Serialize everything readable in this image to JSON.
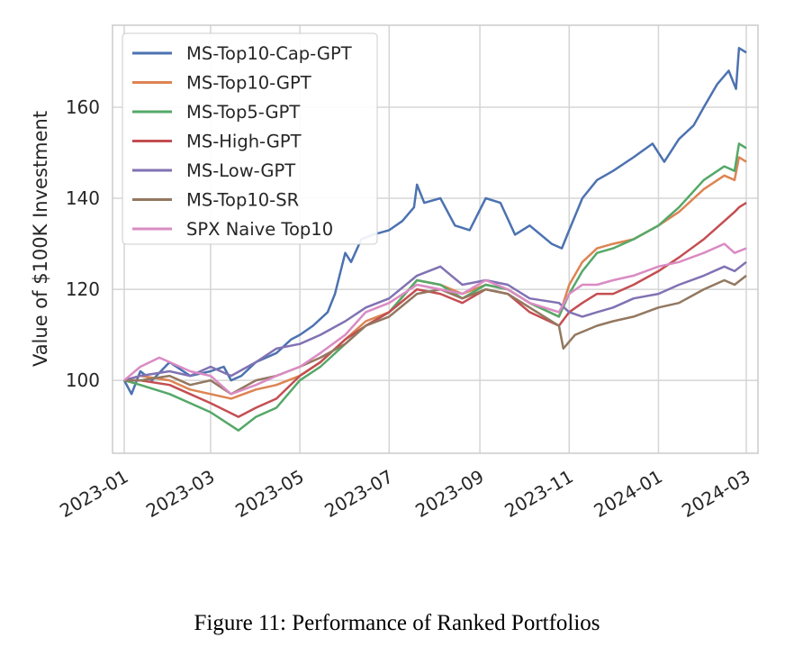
{
  "caption": "Figure 11: Performance of Ranked Portfolios",
  "chart_data": {
    "type": "line",
    "title": "",
    "xlabel": "",
    "ylabel": "Value of $100K Investment",
    "xlim": [
      "2022-12-24",
      "2024-03-09"
    ],
    "ylim": [
      84,
      178
    ],
    "grid": true,
    "legend_position": "top-left",
    "x_ticks": [
      "2023-01",
      "2023-03",
      "2023-05",
      "2023-07",
      "2023-09",
      "2023-11",
      "2024-01",
      "2024-03"
    ],
    "y_ticks": [
      100,
      120,
      140,
      160
    ],
    "series": [
      {
        "name": "MS-Top10-Cap-GPT",
        "color": "#4c72b0",
        "points": [
          [
            "2023-01-01",
            100
          ],
          [
            "2023-01-06",
            97
          ],
          [
            "2023-01-12",
            102
          ],
          [
            "2023-01-20",
            100
          ],
          [
            "2023-02-01",
            104
          ],
          [
            "2023-02-15",
            101
          ],
          [
            "2023-03-01",
            102
          ],
          [
            "2023-03-10",
            103
          ],
          [
            "2023-03-15",
            100
          ],
          [
            "2023-03-22",
            101
          ],
          [
            "2023-04-01",
            104
          ],
          [
            "2023-04-15",
            106
          ],
          [
            "2023-04-25",
            109
          ],
          [
            "2023-05-01",
            110
          ],
          [
            "2023-05-10",
            112
          ],
          [
            "2023-05-20",
            115
          ],
          [
            "2023-05-25",
            119
          ],
          [
            "2023-06-01",
            128
          ],
          [
            "2023-06-05",
            126
          ],
          [
            "2023-06-12",
            131
          ],
          [
            "2023-06-20",
            132
          ],
          [
            "2023-07-01",
            133
          ],
          [
            "2023-07-10",
            135
          ],
          [
            "2023-07-18",
            138
          ],
          [
            "2023-07-20",
            143
          ],
          [
            "2023-07-25",
            139
          ],
          [
            "2023-08-05",
            140
          ],
          [
            "2023-08-15",
            134
          ],
          [
            "2023-08-25",
            133
          ],
          [
            "2023-09-05",
            140
          ],
          [
            "2023-09-15",
            139
          ],
          [
            "2023-09-25",
            132
          ],
          [
            "2023-10-05",
            134
          ],
          [
            "2023-10-20",
            130
          ],
          [
            "2023-10-27",
            129
          ],
          [
            "2023-11-01",
            133
          ],
          [
            "2023-11-10",
            140
          ],
          [
            "2023-11-20",
            144
          ],
          [
            "2023-12-01",
            146
          ],
          [
            "2023-12-15",
            149
          ],
          [
            "2023-12-28",
            152
          ],
          [
            "2024-01-05",
            148
          ],
          [
            "2024-01-15",
            153
          ],
          [
            "2024-01-25",
            156
          ],
          [
            "2024-02-01",
            160
          ],
          [
            "2024-02-10",
            165
          ],
          [
            "2024-02-18",
            168
          ],
          [
            "2024-02-23",
            164
          ],
          [
            "2024-02-25",
            173
          ],
          [
            "2024-03-01",
            172
          ]
        ]
      },
      {
        "name": "MS-Top10-GPT",
        "color": "#dd8452",
        "points": [
          [
            "2023-01-01",
            100
          ],
          [
            "2023-01-12",
            101
          ],
          [
            "2023-02-01",
            100
          ],
          [
            "2023-02-15",
            98
          ],
          [
            "2023-03-01",
            97
          ],
          [
            "2023-03-15",
            96
          ],
          [
            "2023-04-01",
            98
          ],
          [
            "2023-04-15",
            99
          ],
          [
            "2023-05-01",
            101
          ],
          [
            "2023-05-15",
            104
          ],
          [
            "2023-06-01",
            109
          ],
          [
            "2023-06-15",
            113
          ],
          [
            "2023-07-01",
            115
          ],
          [
            "2023-07-20",
            122
          ],
          [
            "2023-08-05",
            121
          ],
          [
            "2023-08-20",
            119
          ],
          [
            "2023-09-05",
            121
          ],
          [
            "2023-09-20",
            120
          ],
          [
            "2023-10-05",
            117
          ],
          [
            "2023-10-25",
            114
          ],
          [
            "2023-11-01",
            121
          ],
          [
            "2023-11-10",
            126
          ],
          [
            "2023-11-20",
            129
          ],
          [
            "2023-12-01",
            130
          ],
          [
            "2023-12-15",
            131
          ],
          [
            "2024-01-01",
            134
          ],
          [
            "2024-01-15",
            137
          ],
          [
            "2024-02-01",
            142
          ],
          [
            "2024-02-15",
            145
          ],
          [
            "2024-02-22",
            144
          ],
          [
            "2024-02-25",
            149
          ],
          [
            "2024-03-01",
            148
          ]
        ]
      },
      {
        "name": "MS-Top5-GPT",
        "color": "#55a868",
        "points": [
          [
            "2023-01-01",
            100
          ],
          [
            "2023-01-12",
            99
          ],
          [
            "2023-02-01",
            97
          ],
          [
            "2023-02-15",
            95
          ],
          [
            "2023-03-01",
            93
          ],
          [
            "2023-03-20",
            89
          ],
          [
            "2023-04-01",
            92
          ],
          [
            "2023-04-15",
            94
          ],
          [
            "2023-05-01",
            100
          ],
          [
            "2023-05-15",
            103
          ],
          [
            "2023-06-01",
            108
          ],
          [
            "2023-06-15",
            112
          ],
          [
            "2023-07-01",
            115
          ],
          [
            "2023-07-20",
            122
          ],
          [
            "2023-08-05",
            121
          ],
          [
            "2023-08-20",
            118
          ],
          [
            "2023-09-05",
            121
          ],
          [
            "2023-09-20",
            120
          ],
          [
            "2023-10-05",
            117
          ],
          [
            "2023-10-25",
            114
          ],
          [
            "2023-11-01",
            119
          ],
          [
            "2023-11-10",
            124
          ],
          [
            "2023-11-20",
            128
          ],
          [
            "2023-12-01",
            129
          ],
          [
            "2023-12-15",
            131
          ],
          [
            "2024-01-01",
            134
          ],
          [
            "2024-01-15",
            138
          ],
          [
            "2024-02-01",
            144
          ],
          [
            "2024-02-15",
            147
          ],
          [
            "2024-02-22",
            146
          ],
          [
            "2024-02-25",
            152
          ],
          [
            "2024-03-01",
            151
          ]
        ]
      },
      {
        "name": "MS-High-GPT",
        "color": "#c44e52",
        "points": [
          [
            "2023-01-01",
            100
          ],
          [
            "2023-01-12",
            100
          ],
          [
            "2023-02-01",
            99
          ],
          [
            "2023-02-15",
            97
          ],
          [
            "2023-03-01",
            95
          ],
          [
            "2023-03-20",
            92
          ],
          [
            "2023-04-01",
            94
          ],
          [
            "2023-04-15",
            96
          ],
          [
            "2023-05-01",
            101
          ],
          [
            "2023-05-15",
            104
          ],
          [
            "2023-06-01",
            109
          ],
          [
            "2023-06-15",
            112
          ],
          [
            "2023-07-01",
            115
          ],
          [
            "2023-07-20",
            120
          ],
          [
            "2023-08-05",
            119
          ],
          [
            "2023-08-20",
            117
          ],
          [
            "2023-09-05",
            120
          ],
          [
            "2023-09-20",
            119
          ],
          [
            "2023-10-05",
            115
          ],
          [
            "2023-10-25",
            112
          ],
          [
            "2023-11-01",
            115
          ],
          [
            "2023-11-10",
            117
          ],
          [
            "2023-11-20",
            119
          ],
          [
            "2023-12-01",
            119
          ],
          [
            "2023-12-15",
            121
          ],
          [
            "2024-01-01",
            124
          ],
          [
            "2024-01-15",
            127
          ],
          [
            "2024-02-01",
            131
          ],
          [
            "2024-02-15",
            135
          ],
          [
            "2024-02-22",
            137
          ],
          [
            "2024-02-25",
            138
          ],
          [
            "2024-03-01",
            139
          ]
        ]
      },
      {
        "name": "MS-Low-GPT",
        "color": "#8172b3",
        "points": [
          [
            "2023-01-01",
            100
          ],
          [
            "2023-01-12",
            101
          ],
          [
            "2023-02-01",
            102
          ],
          [
            "2023-02-15",
            101
          ],
          [
            "2023-03-01",
            103
          ],
          [
            "2023-03-15",
            101
          ],
          [
            "2023-04-01",
            104
          ],
          [
            "2023-04-15",
            107
          ],
          [
            "2023-05-01",
            108
          ],
          [
            "2023-05-15",
            110
          ],
          [
            "2023-06-01",
            113
          ],
          [
            "2023-06-15",
            116
          ],
          [
            "2023-07-01",
            118
          ],
          [
            "2023-07-20",
            123
          ],
          [
            "2023-08-05",
            125
          ],
          [
            "2023-08-20",
            121
          ],
          [
            "2023-09-05",
            122
          ],
          [
            "2023-09-20",
            121
          ],
          [
            "2023-10-05",
            118
          ],
          [
            "2023-10-25",
            117
          ],
          [
            "2023-11-01",
            115
          ],
          [
            "2023-11-10",
            114
          ],
          [
            "2023-11-20",
            115
          ],
          [
            "2023-12-01",
            116
          ],
          [
            "2023-12-15",
            118
          ],
          [
            "2024-01-01",
            119
          ],
          [
            "2024-01-15",
            121
          ],
          [
            "2024-02-01",
            123
          ],
          [
            "2024-02-15",
            125
          ],
          [
            "2024-02-22",
            124
          ],
          [
            "2024-03-01",
            126
          ]
        ]
      },
      {
        "name": "MS-Top10-SR",
        "color": "#937860",
        "points": [
          [
            "2023-01-01",
            100
          ],
          [
            "2023-01-12",
            100
          ],
          [
            "2023-02-01",
            101
          ],
          [
            "2023-02-15",
            99
          ],
          [
            "2023-03-01",
            100
          ],
          [
            "2023-03-15",
            97
          ],
          [
            "2023-04-01",
            100
          ],
          [
            "2023-04-15",
            101
          ],
          [
            "2023-05-01",
            103
          ],
          [
            "2023-05-15",
            105
          ],
          [
            "2023-06-01",
            108
          ],
          [
            "2023-06-15",
            112
          ],
          [
            "2023-07-01",
            114
          ],
          [
            "2023-07-20",
            119
          ],
          [
            "2023-08-05",
            120
          ],
          [
            "2023-08-20",
            118
          ],
          [
            "2023-09-05",
            120
          ],
          [
            "2023-09-20",
            119
          ],
          [
            "2023-10-05",
            116
          ],
          [
            "2023-10-25",
            112
          ],
          [
            "2023-10-28",
            107
          ],
          [
            "2023-11-05",
            110
          ],
          [
            "2023-11-20",
            112
          ],
          [
            "2023-12-01",
            113
          ],
          [
            "2023-12-15",
            114
          ],
          [
            "2024-01-01",
            116
          ],
          [
            "2024-01-15",
            117
          ],
          [
            "2024-02-01",
            120
          ],
          [
            "2024-02-15",
            122
          ],
          [
            "2024-02-22",
            121
          ],
          [
            "2024-03-01",
            123
          ]
        ]
      },
      {
        "name": "SPX Naive Top10",
        "color": "#da8bc3",
        "points": [
          [
            "2023-01-01",
            100
          ],
          [
            "2023-01-12",
            103
          ],
          [
            "2023-01-25",
            105
          ],
          [
            "2023-02-01",
            104
          ],
          [
            "2023-02-15",
            102
          ],
          [
            "2023-03-01",
            101
          ],
          [
            "2023-03-15",
            97
          ],
          [
            "2023-04-01",
            99
          ],
          [
            "2023-04-15",
            101
          ],
          [
            "2023-05-01",
            103
          ],
          [
            "2023-05-15",
            106
          ],
          [
            "2023-06-01",
            110
          ],
          [
            "2023-06-15",
            115
          ],
          [
            "2023-07-01",
            117
          ],
          [
            "2023-07-20",
            121
          ],
          [
            "2023-08-05",
            120
          ],
          [
            "2023-08-20",
            119
          ],
          [
            "2023-09-05",
            122
          ],
          [
            "2023-09-20",
            120
          ],
          [
            "2023-10-05",
            117
          ],
          [
            "2023-10-25",
            115
          ],
          [
            "2023-11-01",
            119
          ],
          [
            "2023-11-10",
            121
          ],
          [
            "2023-11-20",
            121
          ],
          [
            "2023-12-01",
            122
          ],
          [
            "2023-12-15",
            123
          ],
          [
            "2024-01-01",
            125
          ],
          [
            "2024-01-15",
            126
          ],
          [
            "2024-02-01",
            128
          ],
          [
            "2024-02-15",
            130
          ],
          [
            "2024-02-22",
            128
          ],
          [
            "2024-03-01",
            129
          ]
        ]
      }
    ]
  }
}
